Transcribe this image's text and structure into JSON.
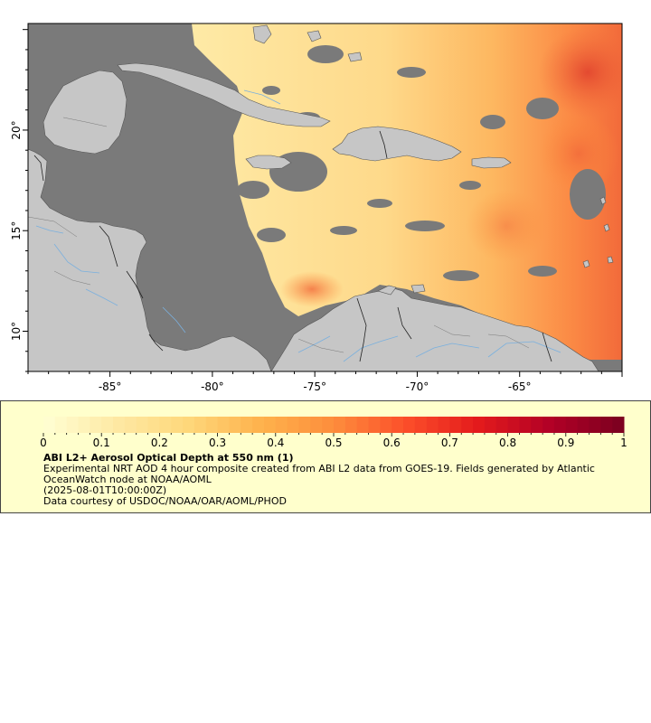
{
  "map": {
    "lon_range": [
      -89,
      -60
    ],
    "lat_range": [
      8,
      25.3
    ],
    "lon_ticks": [
      {
        "value": -85,
        "label": "-85°"
      },
      {
        "value": -80,
        "label": "-80°"
      },
      {
        "value": -75,
        "label": "-75°"
      },
      {
        "value": -70,
        "label": "-70°"
      },
      {
        "value": -65,
        "label": "-65°"
      }
    ],
    "lat_ticks": [
      {
        "value": 10,
        "label": "10°"
      },
      {
        "value": 15,
        "label": "15°"
      },
      {
        "value": 20,
        "label": "20°"
      }
    ],
    "colors": {
      "ocean_nodata": "#7a7a7a",
      "land": "#c6c6c6",
      "rivers": "#7ab0de",
      "borders": "#222222",
      "coast": "#555555"
    }
  },
  "legend": {
    "colorbar_ticks": [
      "0",
      "0.1",
      "0.2",
      "0.3",
      "0.4",
      "0.5",
      "0.6",
      "0.7",
      "0.8",
      "0.9",
      "1"
    ],
    "colorbar_range": [
      0,
      1
    ],
    "colorbar_stops": [
      "#ffffd4",
      "#fee9a4",
      "#fed77a",
      "#feb24c",
      "#fd8d3c",
      "#fc4e2a",
      "#e31a1c",
      "#b10026",
      "#7a0020"
    ],
    "title": "ABI L2+ Aerosol Optical Depth at 550 nm (1)",
    "subtitle": "Experimental NRT AOD 4 hour composite created from ABI L2 data from GOES-19. Fields generated by Atlantic OceanWatch node at NOAA/AOML",
    "date": "(2025-08-01T10:00:00Z)",
    "credit": "Data courtesy of USDOC/NOAA/OAR/AOML/PHOD"
  }
}
